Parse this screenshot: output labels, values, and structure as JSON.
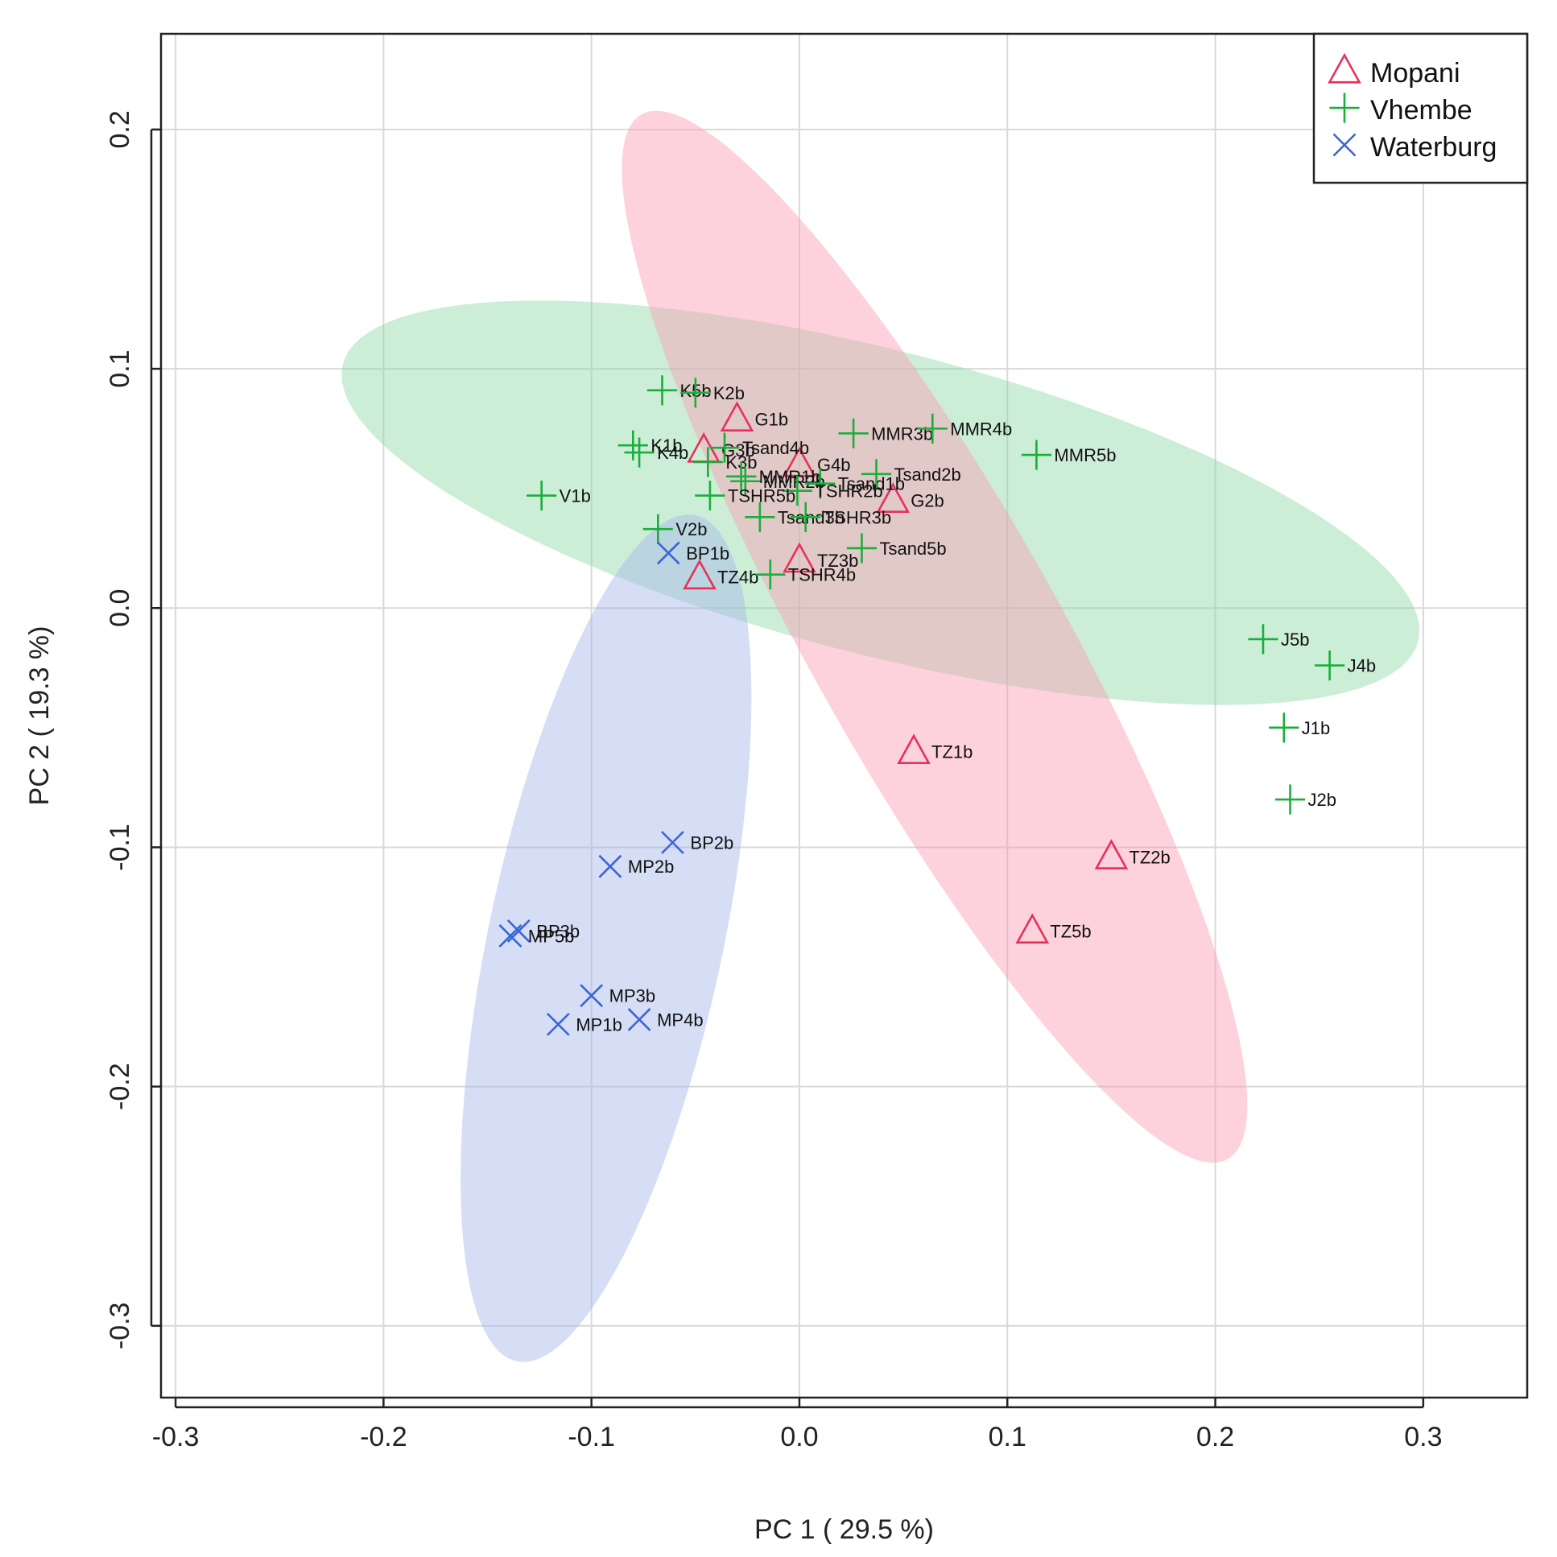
{
  "chart_data": {
    "type": "scatter",
    "xlabel": "PC 1 ( 29.5 %)",
    "ylabel": "PC 2 ( 19.3 %)",
    "xlim": [
      -0.307,
      0.35
    ],
    "ylim": [
      -0.33,
      0.24
    ],
    "x_ticks": [
      "-0.3",
      "-0.2",
      "-0.1",
      "0.0",
      "0.1",
      "0.2",
      "0.3"
    ],
    "x_tick_values": [
      -0.3,
      -0.2,
      -0.1,
      0.0,
      0.1,
      0.2,
      0.3
    ],
    "y_ticks": [
      "-0.3",
      "-0.2",
      "-0.1",
      "0.0",
      "0.1",
      "0.2"
    ],
    "y_tick_values": [
      -0.3,
      -0.2,
      -0.1,
      0.0,
      0.1,
      0.2
    ],
    "grid": true,
    "legend_position": "top-right",
    "legend": [
      {
        "name": "Mopani",
        "marker": "triangle",
        "color": "#e8305a"
      },
      {
        "name": "Vhembe",
        "marker": "plus",
        "color": "#1aae3c"
      },
      {
        "name": "Waterburg",
        "marker": "cross",
        "color": "#3a64d8"
      }
    ],
    "ellipses": [
      {
        "group": "Vhembe",
        "color": "#8fd9a6",
        "cx": 0.039,
        "cy": 0.044,
        "a": 0.265,
        "b": 0.064,
        "angle_deg": -12.4
      },
      {
        "group": "Mopani",
        "color": "#fa9cb4",
        "cx": 0.065,
        "cy": -0.012,
        "a": 0.26,
        "b": 0.058,
        "angle_deg": -56.8
      },
      {
        "group": "Waterburg",
        "color": "#a3b6ec",
        "cx": -0.093,
        "cy": -0.138,
        "a": 0.182,
        "b": 0.056,
        "angle_deg": 76.0
      }
    ],
    "series": [
      {
        "name": "Mopani",
        "points": [
          {
            "label": "G1b",
            "x": -0.03,
            "y": 0.079
          },
          {
            "label": "G3b",
            "x": -0.046,
            "y": 0.066
          },
          {
            "label": "G4b",
            "x": 0.0,
            "y": 0.06
          },
          {
            "label": "G2b",
            "x": 0.045,
            "y": 0.045
          },
          {
            "label": "TZ3b",
            "x": 0.0,
            "y": 0.02
          },
          {
            "label": "TZ4b",
            "x": -0.048,
            "y": 0.013
          },
          {
            "label": "TZ1b",
            "x": 0.055,
            "y": -0.06
          },
          {
            "label": "TZ2b",
            "x": 0.15,
            "y": -0.104
          },
          {
            "label": "TZ5b",
            "x": 0.112,
            "y": -0.135
          }
        ]
      },
      {
        "name": "Vhembe",
        "points": [
          {
            "label": "K5b",
            "x": -0.066,
            "y": 0.091
          },
          {
            "label": "K2b",
            "x": -0.05,
            "y": 0.09
          },
          {
            "label": "K1b",
            "x": -0.08,
            "y": 0.068
          },
          {
            "label": "K4b",
            "x": -0.077,
            "y": 0.065
          },
          {
            "label": "K3b",
            "x": -0.044,
            "y": 0.061
          },
          {
            "label": "Tsand4b",
            "x": -0.036,
            "y": 0.067
          },
          {
            "label": "MMR3b",
            "x": 0.026,
            "y": 0.073
          },
          {
            "label": "MMR4b",
            "x": 0.064,
            "y": 0.075
          },
          {
            "label": "MMR5b",
            "x": 0.114,
            "y": 0.064
          },
          {
            "label": "MMR1b",
            "x": -0.028,
            "y": 0.055
          },
          {
            "label": "MMR2b",
            "x": -0.026,
            "y": 0.053
          },
          {
            "label": "Tsand1b",
            "x": 0.01,
            "y": 0.052
          },
          {
            "label": "Tsand2b",
            "x": 0.037,
            "y": 0.056
          },
          {
            "label": "TSHR2b",
            "x": -0.001,
            "y": 0.049
          },
          {
            "label": "TSHR5b",
            "x": -0.043,
            "y": 0.047
          },
          {
            "label": "V1b",
            "x": -0.124,
            "y": 0.047
          },
          {
            "label": "Tsand3b",
            "x": -0.019,
            "y": 0.038
          },
          {
            "label": "TSHR3b",
            "x": 0.003,
            "y": 0.038
          },
          {
            "label": "V2b",
            "x": -0.068,
            "y": 0.033
          },
          {
            "label": "Tsand5b",
            "x": 0.03,
            "y": 0.025
          },
          {
            "label": "TSHR4b",
            "x": -0.014,
            "y": 0.014
          },
          {
            "label": "J5b",
            "x": 0.223,
            "y": -0.013
          },
          {
            "label": "J4b",
            "x": 0.255,
            "y": -0.024
          },
          {
            "label": "J1b",
            "x": 0.233,
            "y": -0.05
          },
          {
            "label": "J2b",
            "x": 0.236,
            "y": -0.08
          }
        ]
      },
      {
        "name": "Waterburg",
        "points": [
          {
            "label": "BP1b",
            "x": -0.063,
            "y": 0.023
          },
          {
            "label": "BP2b",
            "x": -0.061,
            "y": -0.098
          },
          {
            "label": "MP2b",
            "x": -0.091,
            "y": -0.108
          },
          {
            "label": "BP3b",
            "x": -0.135,
            "y": -0.135
          },
          {
            "label": "MP5b",
            "x": -0.139,
            "y": -0.137
          },
          {
            "label": "MP3b",
            "x": -0.1,
            "y": -0.162
          },
          {
            "label": "MP1b",
            "x": -0.116,
            "y": -0.174
          },
          {
            "label": "MP4b",
            "x": -0.077,
            "y": -0.172
          }
        ]
      }
    ]
  }
}
